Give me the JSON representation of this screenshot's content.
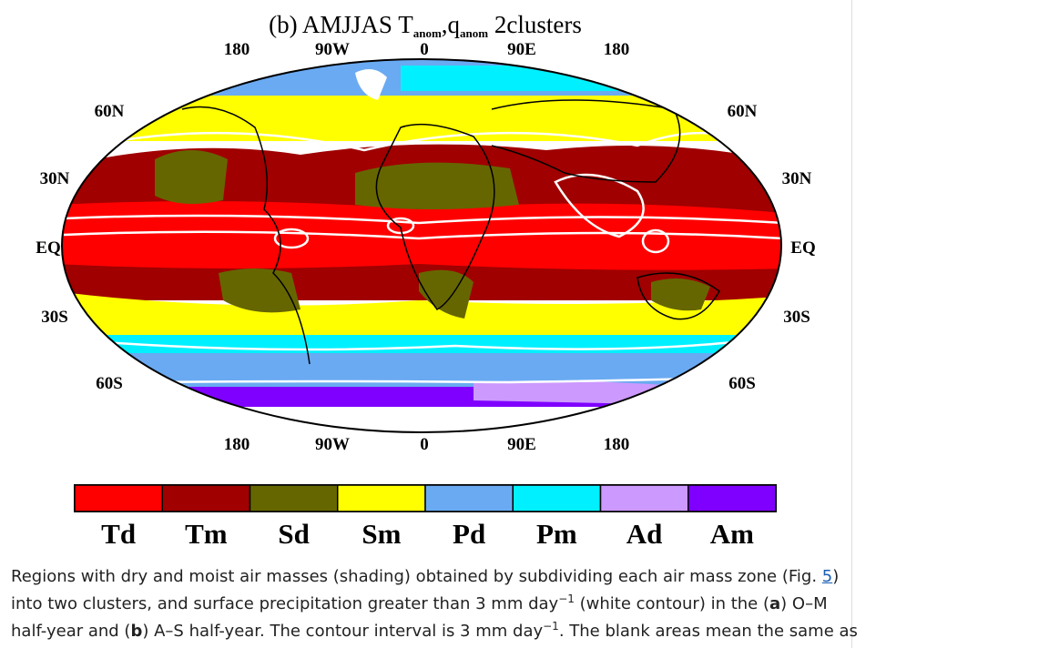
{
  "figure": {
    "title": [
      "(b) AMJJAS T",
      "anom",
      ",q",
      "anom",
      " 2clusters"
    ],
    "longitude_labels": [
      "180",
      "90W",
      "0",
      "90E",
      "180"
    ],
    "latitude_labels": [
      "60N",
      "30N",
      "EQ",
      "30S",
      "60S"
    ],
    "legend": [
      {
        "label": "Td",
        "color": "#ff0000"
      },
      {
        "label": "Tm",
        "color": "#a00000"
      },
      {
        "label": "Sd",
        "color": "#666600"
      },
      {
        "label": "Sm",
        "color": "#ffff00"
      },
      {
        "label": "Pd",
        "color": "#6aaaf2"
      },
      {
        "label": "Pm",
        "color": "#00f0ff"
      },
      {
        "label": "Ad",
        "color": "#cc99ff"
      },
      {
        "label": "Am",
        "color": "#7f00ff"
      }
    ]
  },
  "caption": {
    "parts": [
      "Regions with dry and moist air masses (shading) obtained by subdividing each air mass zone (Fig. ",
      "5",
      ")",
      "into two clusters, and surface precipitation greater than 3 mm day",
      "−1",
      " (white contour) in the (",
      "a",
      ") O–M",
      "half-year and (",
      "b",
      ") A–S half-year. The contour interval is 3 mm day",
      "−1",
      ". The blank areas mean the same as"
    ]
  }
}
